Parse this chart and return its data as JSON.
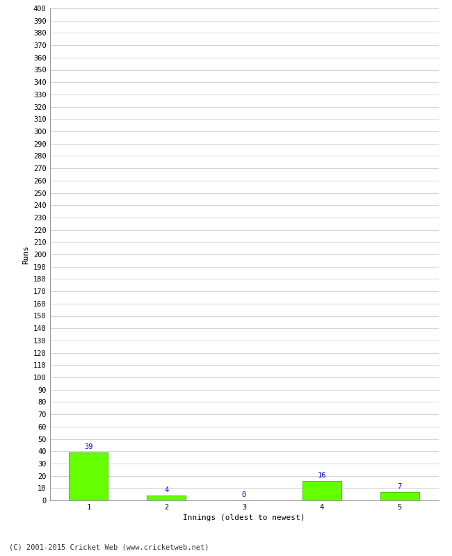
{
  "xlabel": "Innings (oldest to newest)",
  "ylabel": "Runs",
  "categories": [
    1,
    2,
    3,
    4,
    5
  ],
  "values": [
    39,
    4,
    0,
    16,
    7
  ],
  "bar_color": "#66ff00",
  "bar_edge_color": "#44cc00",
  "label_color": "#0000cc",
  "ylim": [
    0,
    400
  ],
  "ytick_step": 10,
  "background_color": "#ffffff",
  "grid_color": "#cccccc",
  "footer_text": "(C) 2001-2015 Cricket Web (www.cricketweb.net)",
  "tick_fontsize": 7.5,
  "label_fontsize": 8,
  "footer_fontsize": 7.5
}
